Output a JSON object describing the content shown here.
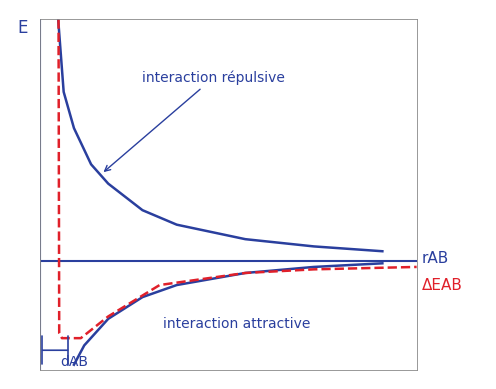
{
  "chart_data": {
    "type": "line",
    "y_label": "E",
    "x_label": "rAB",
    "xlim": [
      0,
      11
    ],
    "ylim": [
      -4.5,
      10
    ],
    "xticks": [],
    "yticks": [],
    "tick_labels": false,
    "series": [
      {
        "name": "interaction répulsive",
        "color": "#2a3f9e",
        "line_style": "solid",
        "x": [
          0.54,
          0.7,
          1,
          1.5,
          2,
          3,
          4,
          6,
          8,
          10
        ],
        "values": [
          10,
          7,
          5.5,
          4,
          3.2,
          2.1,
          1.5,
          0.9,
          0.6,
          0.4
        ]
      },
      {
        "name": "interaction attractive",
        "color": "#2a3f9e",
        "line_style": "solid",
        "x": [
          1.0,
          1.3,
          2,
          3,
          4,
          6,
          8,
          10
        ],
        "values": [
          -4.3,
          -3.5,
          -2.4,
          -1.5,
          -1.0,
          -0.5,
          -0.25,
          -0.1
        ]
      },
      {
        "name": "ΔEAB",
        "color": "#e0202a",
        "line_style": "dashed",
        "x": [
          0.55,
          0.57,
          0.65,
          1.2,
          2,
          3.5,
          6,
          8,
          11
        ],
        "values": [
          10,
          -3.0,
          -3.2,
          -3.2,
          -2.3,
          -1.0,
          -0.5,
          -0.35,
          -0.25
        ]
      }
    ],
    "annotations": [
      {
        "text": "dAB",
        "x": [
          0,
          0.9
        ],
        "y": -3.7
      }
    ]
  }
}
